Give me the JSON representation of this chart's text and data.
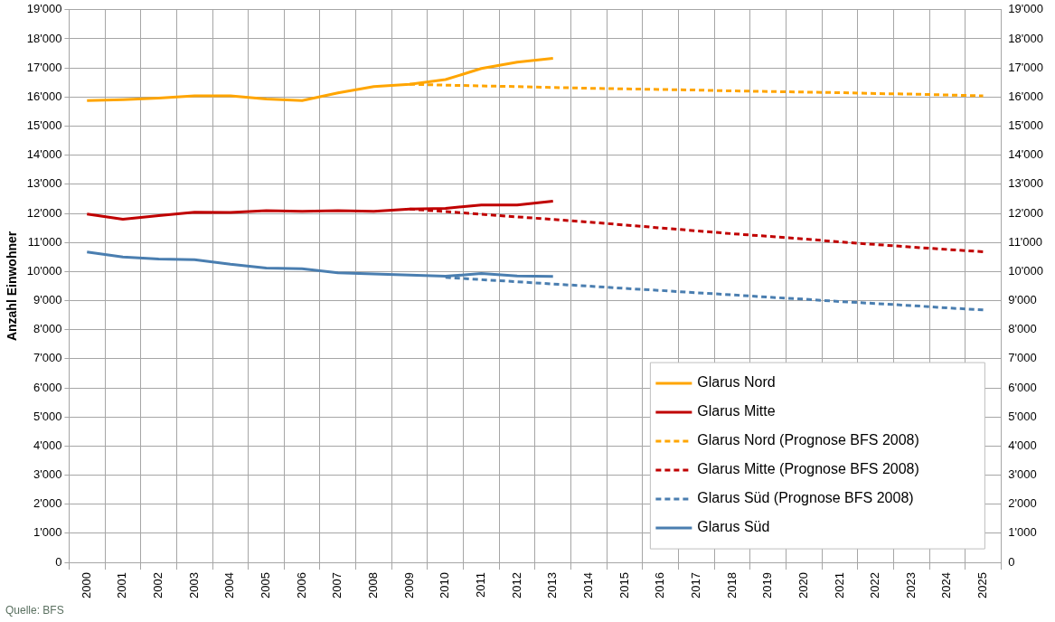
{
  "chart_data": {
    "type": "line",
    "ylabel": "Anzahl Einwohner",
    "categories": [
      "2000",
      "2001",
      "2002",
      "2003",
      "2004",
      "2005",
      "2006",
      "2007",
      "2008",
      "2009",
      "2010",
      "2011",
      "2012",
      "2013",
      "2014",
      "2015",
      "2016",
      "2017",
      "2018",
      "2019",
      "2020",
      "2021",
      "2022",
      "2023",
      "2024",
      "2025"
    ],
    "series": [
      {
        "name": "Glarus Nord",
        "color": "#ffa500",
        "line_style": "solid",
        "values": [
          15880,
          15910,
          15960,
          16040,
          16040,
          15930,
          15880,
          16140,
          16360,
          16440,
          16600,
          16980,
          17200,
          17330,
          null,
          null,
          null,
          null,
          null,
          null,
          null,
          null,
          null,
          null,
          null,
          null
        ]
      },
      {
        "name": "Glarus Mitte",
        "color": "#c00000",
        "line_style": "solid",
        "values": [
          11980,
          11800,
          11920,
          12040,
          12030,
          12090,
          12070,
          12090,
          12070,
          12150,
          12170,
          12290,
          12290,
          12420,
          null,
          null,
          null,
          null,
          null,
          null,
          null,
          null,
          null,
          null,
          null,
          null
        ]
      },
      {
        "name": "Glarus Nord (Prognose BFS 2008)",
        "color": "#ffa500",
        "line_style": "dashed",
        "values": [
          null,
          null,
          null,
          null,
          null,
          null,
          null,
          null,
          null,
          16440,
          16410,
          16380,
          16360,
          16330,
          16300,
          16280,
          16260,
          16240,
          16210,
          16190,
          16170,
          16150,
          16120,
          16100,
          16070,
          16040
        ]
      },
      {
        "name": "Glarus Mitte (Prognose BFS 2008)",
        "color": "#c00000",
        "line_style": "dashed",
        "values": [
          null,
          null,
          null,
          null,
          null,
          null,
          null,
          null,
          null,
          12150,
          12060,
          11970,
          11880,
          11790,
          11700,
          11600,
          11500,
          11400,
          11300,
          11210,
          11120,
          11020,
          10930,
          10840,
          10760,
          10680
        ]
      },
      {
        "name": "Glarus Süd (Prognose BFS 2008)",
        "color": "#4a7eb0",
        "line_style": "dashed",
        "values": [
          null,
          null,
          null,
          null,
          null,
          null,
          null,
          null,
          null,
          null,
          9800,
          9720,
          9650,
          9570,
          9500,
          9420,
          9350,
          9270,
          9200,
          9120,
          9050,
          8970,
          8900,
          8830,
          8750,
          8680
        ]
      },
      {
        "name": "Glarus Süd",
        "color": "#4a7eb0",
        "line_style": "solid",
        "values": [
          10670,
          10500,
          10430,
          10410,
          10250,
          10120,
          10100,
          9960,
          9920,
          9880,
          9840,
          9930,
          9850,
          9830,
          null,
          null,
          null,
          null,
          null,
          null,
          null,
          null,
          null,
          null,
          null,
          null
        ]
      }
    ],
    "ylim": [
      0,
      19000
    ],
    "yticks": [
      0,
      {
        "value": 1000,
        "label": "1'000"
      },
      {
        "value": 2000,
        "label": "2'000"
      },
      {
        "value": 3000,
        "label": "3'000"
      },
      {
        "value": 4000,
        "label": "4'000"
      },
      {
        "value": 5000,
        "label": "5'000"
      },
      {
        "value": 6000,
        "label": "6'000"
      },
      {
        "value": 7000,
        "label": "7'000"
      },
      {
        "value": 8000,
        "label": "8'000"
      },
      {
        "value": 9000,
        "label": "9'000"
      },
      {
        "value": 10000,
        "label": "10'000"
      },
      {
        "value": 11000,
        "label": "11'000"
      },
      {
        "value": 12000,
        "label": "12'000"
      },
      {
        "value": 13000,
        "label": "13'000"
      },
      {
        "value": 14000,
        "label": "14'000"
      },
      {
        "value": 15000,
        "label": "15'000"
      },
      {
        "value": 16000,
        "label": "16'000"
      },
      {
        "value": 17000,
        "label": "17'000"
      },
      {
        "value": 18000,
        "label": "18'000"
      },
      {
        "value": 19000,
        "label": "19'000"
      }
    ],
    "y2lim": [
      0,
      19000
    ],
    "y2ticks": [
      0,
      {
        "value": 1000,
        "label": "1'000"
      },
      {
        "value": 2000,
        "label": "2'000"
      },
      {
        "value": 3000,
        "label": "3'000"
      },
      {
        "value": 4000,
        "label": "4'000"
      },
      {
        "value": 5000,
        "label": "5'000"
      },
      {
        "value": 6000,
        "label": "6'000"
      },
      {
        "value": 7000,
        "label": "7'000"
      },
      {
        "value": 8000,
        "label": "8'000"
      },
      {
        "value": 9000,
        "label": "9'000"
      },
      {
        "value": 10000,
        "label": "10'000"
      },
      {
        "value": 11000,
        "label": "11'000"
      },
      {
        "value": 12000,
        "label": "12'000"
      },
      {
        "value": 13000,
        "label": "13'000"
      },
      {
        "value": 14000,
        "label": "14'000"
      },
      {
        "value": 15000,
        "label": "15'000"
      },
      {
        "value": 16000,
        "label": "16'000"
      },
      {
        "value": 17000,
        "label": "17'000"
      },
      {
        "value": 18000,
        "label": "18'000"
      },
      {
        "value": 19000,
        "label": "19'000"
      }
    ],
    "grid": true,
    "legend": "bottom right",
    "marker": "none",
    "annotations": [
      "Quelle: BFS"
    ]
  }
}
